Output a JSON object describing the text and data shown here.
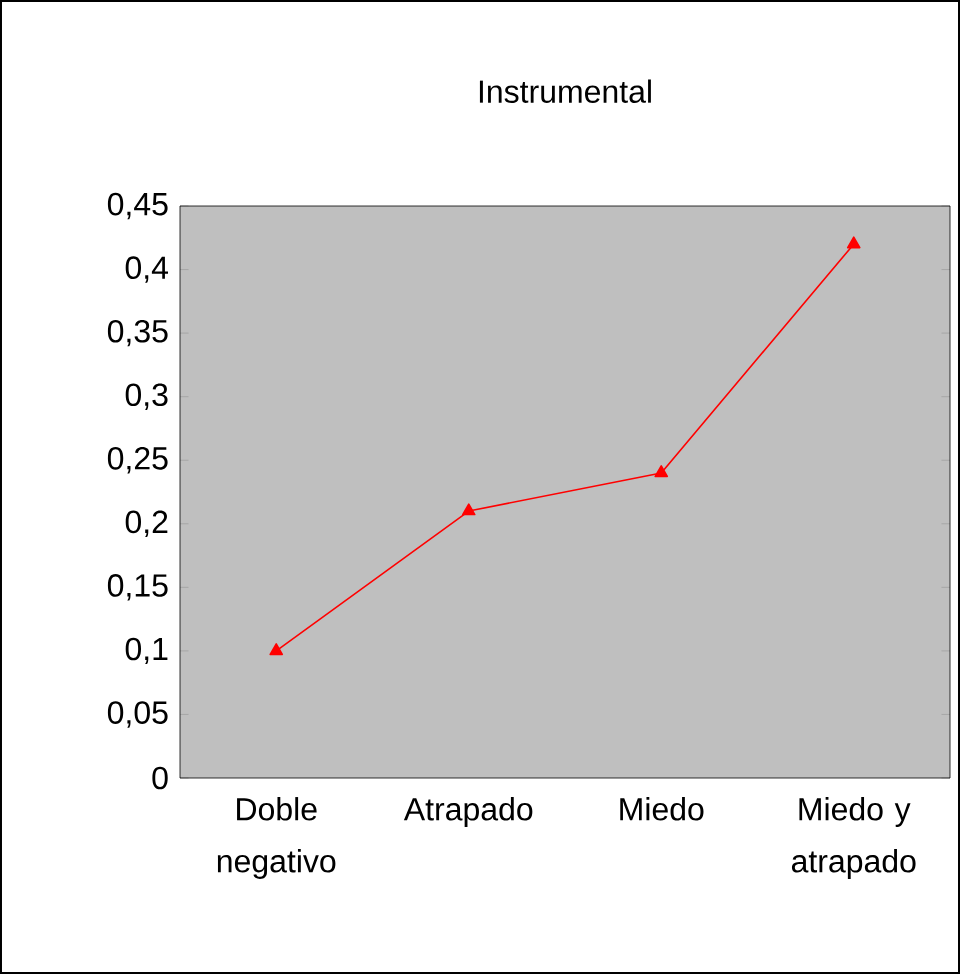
{
  "chart_data": {
    "type": "line",
    "title": "Instrumental",
    "categories": [
      "Doble negativo",
      "Atrapado",
      "Miedo",
      "Miedo y atrapado"
    ],
    "series": [
      {
        "color": "#ff0000",
        "values": [
          0.1,
          0.21,
          0.24,
          0.42
        ]
      }
    ],
    "ylim": [
      0,
      0.45
    ],
    "yticks": [
      0,
      {
        "value": 0.05,
        "label": "0,05"
      },
      {
        "value": 0.1,
        "label": "0,1"
      },
      {
        "value": 0.15,
        "label": "0,15"
      },
      {
        "value": 0.2,
        "label": "0,2"
      },
      {
        "value": 0.25,
        "label": "0,25"
      },
      {
        "value": 0.3,
        "label": "0,3"
      },
      {
        "value": 0.35,
        "label": "0,35"
      },
      {
        "value": 0.4,
        "label": "0,4"
      },
      {
        "value": 0.45,
        "label": "0,45"
      }
    ],
    "marker": "triangle",
    "line_style": "solid",
    "grid": false
  }
}
